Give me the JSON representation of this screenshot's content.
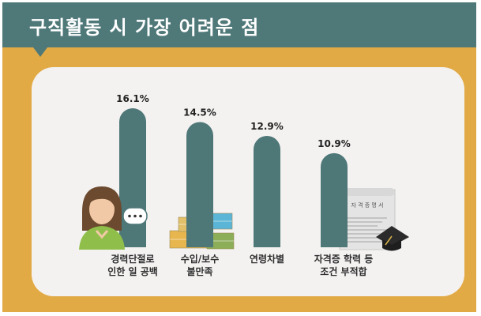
{
  "header": {
    "title": "구직활동 시 가장 어려운 점"
  },
  "colors": {
    "frame": "#e2aa45",
    "banner": "#4f7879",
    "bar": "#4e7778",
    "panel": "#f4f2f1"
  },
  "chart_data": {
    "type": "bar",
    "title": "구직활동 시 가장 어려운 점",
    "unit": "%",
    "categories": [
      [
        "경력단절로",
        "인한 일 공백"
      ],
      [
        "수입/보수",
        "불만족"
      ],
      [
        "연령차별"
      ],
      [
        "자격증 학력 등",
        "조건 부적합"
      ]
    ],
    "series": [
      {
        "values": [
          16.1,
          14.5,
          12.9,
          10.9
        ]
      }
    ],
    "value_labels": [
      "16.1%",
      "14.5%",
      "12.9%",
      "10.9%"
    ],
    "grid": false,
    "legend": "none"
  },
  "illustrations": {
    "certificate_text": "자 격 증 명 서",
    "icons": [
      "woman-icon",
      "speech-bubble-icon",
      "money-stack-icon",
      "certificate-icon",
      "graduation-cap-icon"
    ]
  }
}
